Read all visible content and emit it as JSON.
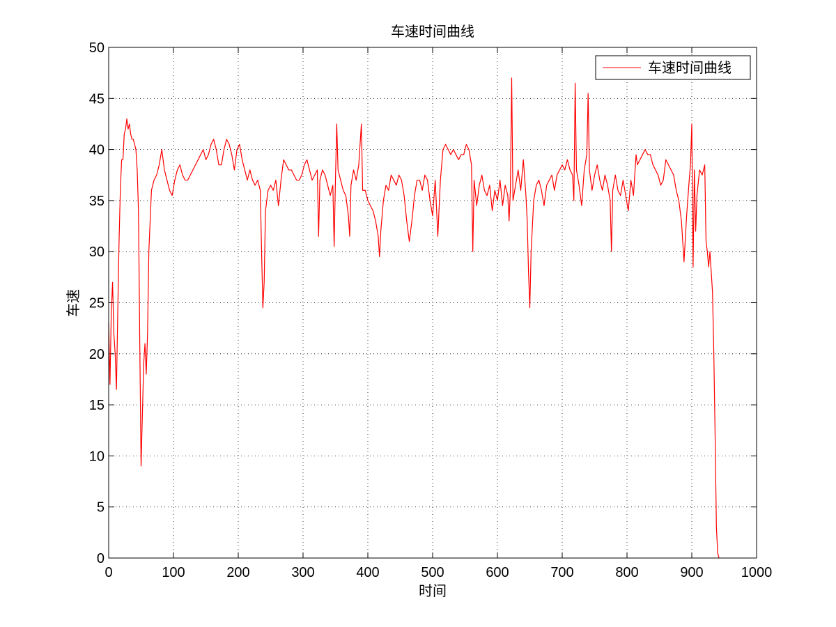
{
  "chart_data": {
    "type": "line",
    "title": "车速时间曲线",
    "xlabel": "时间",
    "ylabel": "车速",
    "xlim": [
      0,
      1000
    ],
    "ylim": [
      0,
      50
    ],
    "xticks": [
      0,
      100,
      200,
      300,
      400,
      500,
      600,
      700,
      800,
      900,
      1000
    ],
    "yticks": [
      0,
      5,
      10,
      15,
      20,
      25,
      30,
      35,
      40,
      45,
      50
    ],
    "grid": true,
    "legend_position": "top-right",
    "series": [
      {
        "name": "车速时间曲线",
        "color": "#ff0000",
        "points": [
          [
            0,
            23
          ],
          [
            2,
            17
          ],
          [
            4,
            24
          ],
          [
            6,
            27
          ],
          [
            8,
            22
          ],
          [
            10,
            20
          ],
          [
            12,
            16.5
          ],
          [
            14,
            24
          ],
          [
            16,
            31
          ],
          [
            18,
            36
          ],
          [
            20,
            39
          ],
          [
            22,
            39
          ],
          [
            24,
            41.5
          ],
          [
            26,
            42
          ],
          [
            28,
            43
          ],
          [
            30,
            42
          ],
          [
            32,
            42.5
          ],
          [
            34,
            41.5
          ],
          [
            36,
            41
          ],
          [
            38,
            41
          ],
          [
            40,
            40.5
          ],
          [
            42,
            40
          ],
          [
            44,
            38
          ],
          [
            46,
            34
          ],
          [
            48,
            21
          ],
          [
            50,
            9
          ],
          [
            52,
            14
          ],
          [
            54,
            19
          ],
          [
            56,
            21
          ],
          [
            58,
            18
          ],
          [
            60,
            22
          ],
          [
            62,
            30
          ],
          [
            64,
            33
          ],
          [
            66,
            36
          ],
          [
            70,
            37
          ],
          [
            74,
            37.5
          ],
          [
            78,
            38.5
          ],
          [
            82,
            40
          ],
          [
            86,
            38
          ],
          [
            90,
            37
          ],
          [
            94,
            36
          ],
          [
            98,
            35.5
          ],
          [
            102,
            37
          ],
          [
            106,
            38
          ],
          [
            110,
            38.5
          ],
          [
            114,
            37.5
          ],
          [
            118,
            37
          ],
          [
            122,
            37
          ],
          [
            126,
            37.5
          ],
          [
            130,
            38
          ],
          [
            134,
            38.5
          ],
          [
            138,
            39
          ],
          [
            142,
            39.5
          ],
          [
            146,
            40
          ],
          [
            150,
            39
          ],
          [
            154,
            39.5
          ],
          [
            158,
            40.5
          ],
          [
            162,
            41
          ],
          [
            166,
            40
          ],
          [
            170,
            38.5
          ],
          [
            174,
            38.5
          ],
          [
            178,
            40
          ],
          [
            182,
            41
          ],
          [
            186,
            40.5
          ],
          [
            190,
            39.5
          ],
          [
            194,
            38
          ],
          [
            198,
            40
          ],
          [
            202,
            40.5
          ],
          [
            206,
            39
          ],
          [
            210,
            38
          ],
          [
            214,
            37
          ],
          [
            218,
            38
          ],
          [
            222,
            37
          ],
          [
            226,
            36.5
          ],
          [
            230,
            37
          ],
          [
            234,
            36
          ],
          [
            236,
            30
          ],
          [
            238,
            24.5
          ],
          [
            240,
            27
          ],
          [
            242,
            34
          ],
          [
            246,
            36
          ],
          [
            250,
            36.5
          ],
          [
            254,
            36
          ],
          [
            258,
            37
          ],
          [
            262,
            34.5
          ],
          [
            266,
            37
          ],
          [
            270,
            39
          ],
          [
            274,
            38.5
          ],
          [
            278,
            38
          ],
          [
            282,
            38
          ],
          [
            286,
            37.5
          ],
          [
            290,
            37
          ],
          [
            294,
            37
          ],
          [
            298,
            37.5
          ],
          [
            302,
            38.5
          ],
          [
            306,
            39
          ],
          [
            310,
            38
          ],
          [
            314,
            37
          ],
          [
            318,
            37.5
          ],
          [
            322,
            38
          ],
          [
            324,
            31.5
          ],
          [
            326,
            37
          ],
          [
            330,
            38
          ],
          [
            334,
            37.5
          ],
          [
            338,
            36.5
          ],
          [
            342,
            35.5
          ],
          [
            346,
            36.5
          ],
          [
            348,
            30.5
          ],
          [
            350,
            37
          ],
          [
            352,
            42.5
          ],
          [
            354,
            38
          ],
          [
            358,
            37
          ],
          [
            362,
            36
          ],
          [
            366,
            35.5
          ],
          [
            370,
            33.5
          ],
          [
            372,
            31.5
          ],
          [
            374,
            36.5
          ],
          [
            378,
            38
          ],
          [
            382,
            37
          ],
          [
            386,
            38.5
          ],
          [
            390,
            42.5
          ],
          [
            392,
            36
          ],
          [
            396,
            36
          ],
          [
            400,
            35
          ],
          [
            404,
            34.5
          ],
          [
            408,
            34
          ],
          [
            412,
            33
          ],
          [
            416,
            31.5
          ],
          [
            418,
            29.5
          ],
          [
            420,
            32
          ],
          [
            424,
            35
          ],
          [
            428,
            36.5
          ],
          [
            432,
            36
          ],
          [
            436,
            37.5
          ],
          [
            440,
            37
          ],
          [
            444,
            36.5
          ],
          [
            448,
            37.5
          ],
          [
            452,
            37
          ],
          [
            456,
            35.5
          ],
          [
            460,
            33
          ],
          [
            464,
            31
          ],
          [
            468,
            33
          ],
          [
            472,
            35.5
          ],
          [
            476,
            37
          ],
          [
            480,
            37
          ],
          [
            484,
            36
          ],
          [
            488,
            37.5
          ],
          [
            492,
            37
          ],
          [
            496,
            35
          ],
          [
            500,
            33.5
          ],
          [
            504,
            37
          ],
          [
            508,
            31.5
          ],
          [
            512,
            37
          ],
          [
            516,
            40
          ],
          [
            520,
            40.5
          ],
          [
            524,
            40
          ],
          [
            528,
            39.5
          ],
          [
            532,
            40
          ],
          [
            536,
            39.5
          ],
          [
            540,
            39
          ],
          [
            544,
            39.5
          ],
          [
            548,
            39.5
          ],
          [
            552,
            40.5
          ],
          [
            556,
            40
          ],
          [
            560,
            38.5
          ],
          [
            562,
            30
          ],
          [
            564,
            37
          ],
          [
            568,
            34.5
          ],
          [
            572,
            36.5
          ],
          [
            576,
            37.5
          ],
          [
            580,
            36
          ],
          [
            584,
            35.5
          ],
          [
            588,
            36.5
          ],
          [
            592,
            34
          ],
          [
            596,
            36
          ],
          [
            600,
            35
          ],
          [
            604,
            37
          ],
          [
            608,
            34.5
          ],
          [
            612,
            36.5
          ],
          [
            616,
            35.5
          ],
          [
            618,
            33
          ],
          [
            620,
            36
          ],
          [
            622,
            47
          ],
          [
            624,
            35
          ],
          [
            628,
            36.5
          ],
          [
            632,
            38
          ],
          [
            636,
            36
          ],
          [
            640,
            39
          ],
          [
            644,
            35.5
          ],
          [
            646,
            33
          ],
          [
            648,
            28
          ],
          [
            650,
            24.5
          ],
          [
            652,
            30
          ],
          [
            656,
            35
          ],
          [
            660,
            36.5
          ],
          [
            664,
            37
          ],
          [
            668,
            36
          ],
          [
            672,
            34.5
          ],
          [
            676,
            36.5
          ],
          [
            680,
            37
          ],
          [
            684,
            37.5
          ],
          [
            688,
            36
          ],
          [
            692,
            37.5
          ],
          [
            696,
            38
          ],
          [
            700,
            38.5
          ],
          [
            704,
            38
          ],
          [
            708,
            39
          ],
          [
            712,
            38
          ],
          [
            716,
            37.5
          ],
          [
            718,
            35
          ],
          [
            720,
            46.5
          ],
          [
            722,
            38
          ],
          [
            726,
            36.5
          ],
          [
            730,
            34.5
          ],
          [
            734,
            38
          ],
          [
            738,
            39.5
          ],
          [
            740,
            45.5
          ],
          [
            742,
            38
          ],
          [
            746,
            36
          ],
          [
            750,
            37.5
          ],
          [
            754,
            38.5
          ],
          [
            758,
            37
          ],
          [
            762,
            36
          ],
          [
            766,
            37.5
          ],
          [
            770,
            36.5
          ],
          [
            774,
            35
          ],
          [
            776,
            30
          ],
          [
            778,
            36
          ],
          [
            782,
            37.5
          ],
          [
            786,
            36
          ],
          [
            790,
            35.5
          ],
          [
            794,
            37
          ],
          [
            798,
            35.5
          ],
          [
            802,
            34
          ],
          [
            806,
            37
          ],
          [
            810,
            35.5
          ],
          [
            814,
            39.5
          ],
          [
            816,
            38.5
          ],
          [
            820,
            39
          ],
          [
            824,
            39.5
          ],
          [
            828,
            40
          ],
          [
            832,
            39.5
          ],
          [
            836,
            39.5
          ],
          [
            840,
            38.5
          ],
          [
            844,
            38
          ],
          [
            848,
            37.5
          ],
          [
            852,
            36.5
          ],
          [
            856,
            37
          ],
          [
            860,
            39
          ],
          [
            864,
            38.5
          ],
          [
            868,
            38
          ],
          [
            872,
            37.5
          ],
          [
            876,
            36
          ],
          [
            880,
            35
          ],
          [
            884,
            33
          ],
          [
            888,
            29
          ],
          [
            892,
            33.5
          ],
          [
            896,
            37
          ],
          [
            898,
            38.5
          ],
          [
            900,
            42.5
          ],
          [
            902,
            28.5
          ],
          [
            904,
            38
          ],
          [
            906,
            32
          ],
          [
            908,
            35.5
          ],
          [
            912,
            38
          ],
          [
            916,
            37.5
          ],
          [
            920,
            38.5
          ],
          [
            922,
            31
          ],
          [
            924,
            30
          ],
          [
            926,
            28.5
          ],
          [
            928,
            30
          ],
          [
            930,
            28
          ],
          [
            932,
            26
          ],
          [
            934,
            20
          ],
          [
            936,
            12
          ],
          [
            938,
            3
          ],
          [
            940,
            0.5
          ],
          [
            942,
            0
          ]
        ]
      }
    ]
  }
}
